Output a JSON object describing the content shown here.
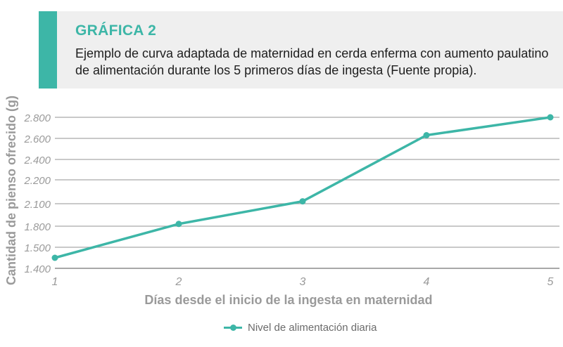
{
  "header": {
    "label": "GRÁFICA 2",
    "title": "Ejemplo de curva adaptada de maternidad en cerda enferma con aumento paulatino de alimentación durante los 5 primeros días de ingesta (Fuente propia)."
  },
  "colors": {
    "accent": "#3db6a7",
    "header_bg": "#efefef",
    "grid": "#a9a9a9",
    "axis_text": "#9a9a9a"
  },
  "chart_data": {
    "type": "line",
    "x": [
      1,
      2,
      3,
      4,
      5
    ],
    "series": [
      {
        "name": "Nivel de alimentación diaria",
        "values": [
          1450,
          1830,
          2110,
          2630,
          2800
        ]
      }
    ],
    "xlabel": "Días desde el inicio de la ingesta en maternidad",
    "ylabel": "Cantidad de pienso ofrecido (g)",
    "yticks": [
      "1.400",
      "1.500",
      "1.800",
      "2.100",
      "2.200",
      "2.400",
      "2.600",
      "2.800"
    ],
    "xticks": [
      "1",
      "2",
      "3",
      "4",
      "5"
    ],
    "grid": true,
    "legend": "bottom"
  }
}
